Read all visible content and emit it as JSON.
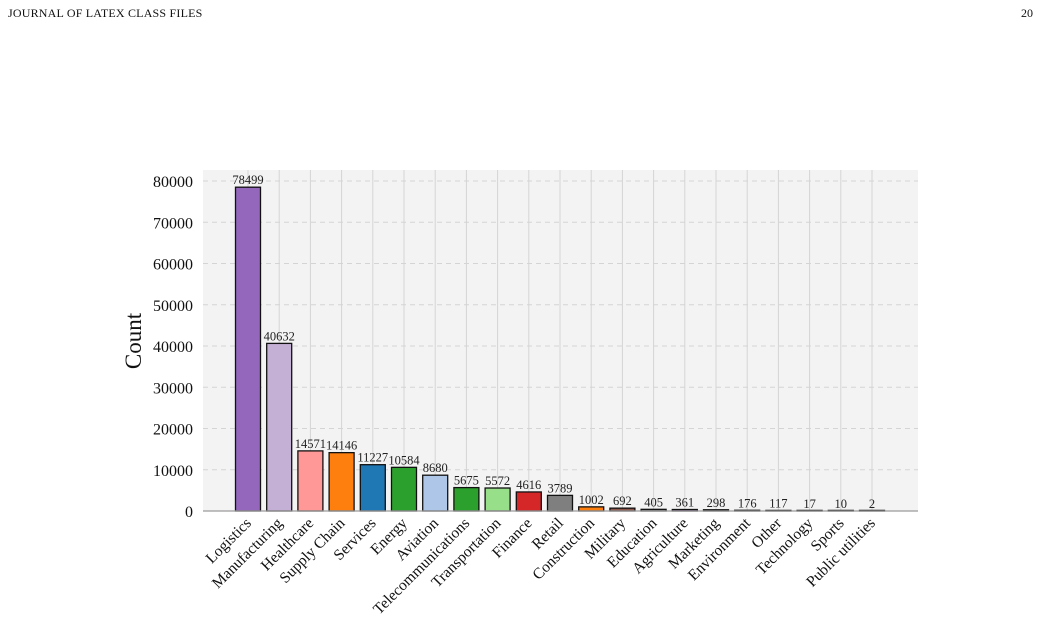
{
  "header": {
    "journal": "JOURNAL OF LATEX CLASS FILES",
    "page_number": "20"
  },
  "colors": {
    "plot_background": "#f3f3f3",
    "grid": "#d4d4d4",
    "bar_edge": "#111111"
  },
  "chart_data": {
    "type": "bar",
    "title": "",
    "xlabel": "",
    "ylabel": "Count",
    "ylim": [
      0,
      82000
    ],
    "yticks": [
      0,
      10000,
      20000,
      30000,
      40000,
      50000,
      60000,
      70000,
      80000
    ],
    "grid": true,
    "categories": [
      "Logistics",
      "Manufacturing",
      "Healthcare",
      "Supply Chain",
      "Services",
      "Energy",
      "Aviation",
      "Telecommunications",
      "Transportation",
      "Finance",
      "Retail",
      "Construction",
      "Military",
      "Education",
      "Agriculture",
      "Marketing",
      "Environment",
      "Other",
      "Technology",
      "Sports",
      "Public utilities"
    ],
    "values": [
      78499,
      40632,
      14571,
      14146,
      11227,
      10584,
      8680,
      5675,
      5572,
      4616,
      3789,
      1002,
      692,
      405,
      361,
      298,
      176,
      117,
      17,
      10,
      2
    ],
    "bar_colors": [
      "#9467bd",
      "#c5b0d5",
      "#ff9896",
      "#ff7f0e",
      "#1f77b4",
      "#2ca02c",
      "#aec7e8",
      "#2ca02c",
      "#98df8a",
      "#d62728",
      "#7f7f7f",
      "#ff7f0e",
      "#8c564b",
      "#7f7f7f",
      "#9467bd",
      "#bcbd22",
      "#17becf",
      "#c7c7c7",
      "#1f77b4",
      "#ff7f0e",
      "#2ca02c"
    ]
  }
}
